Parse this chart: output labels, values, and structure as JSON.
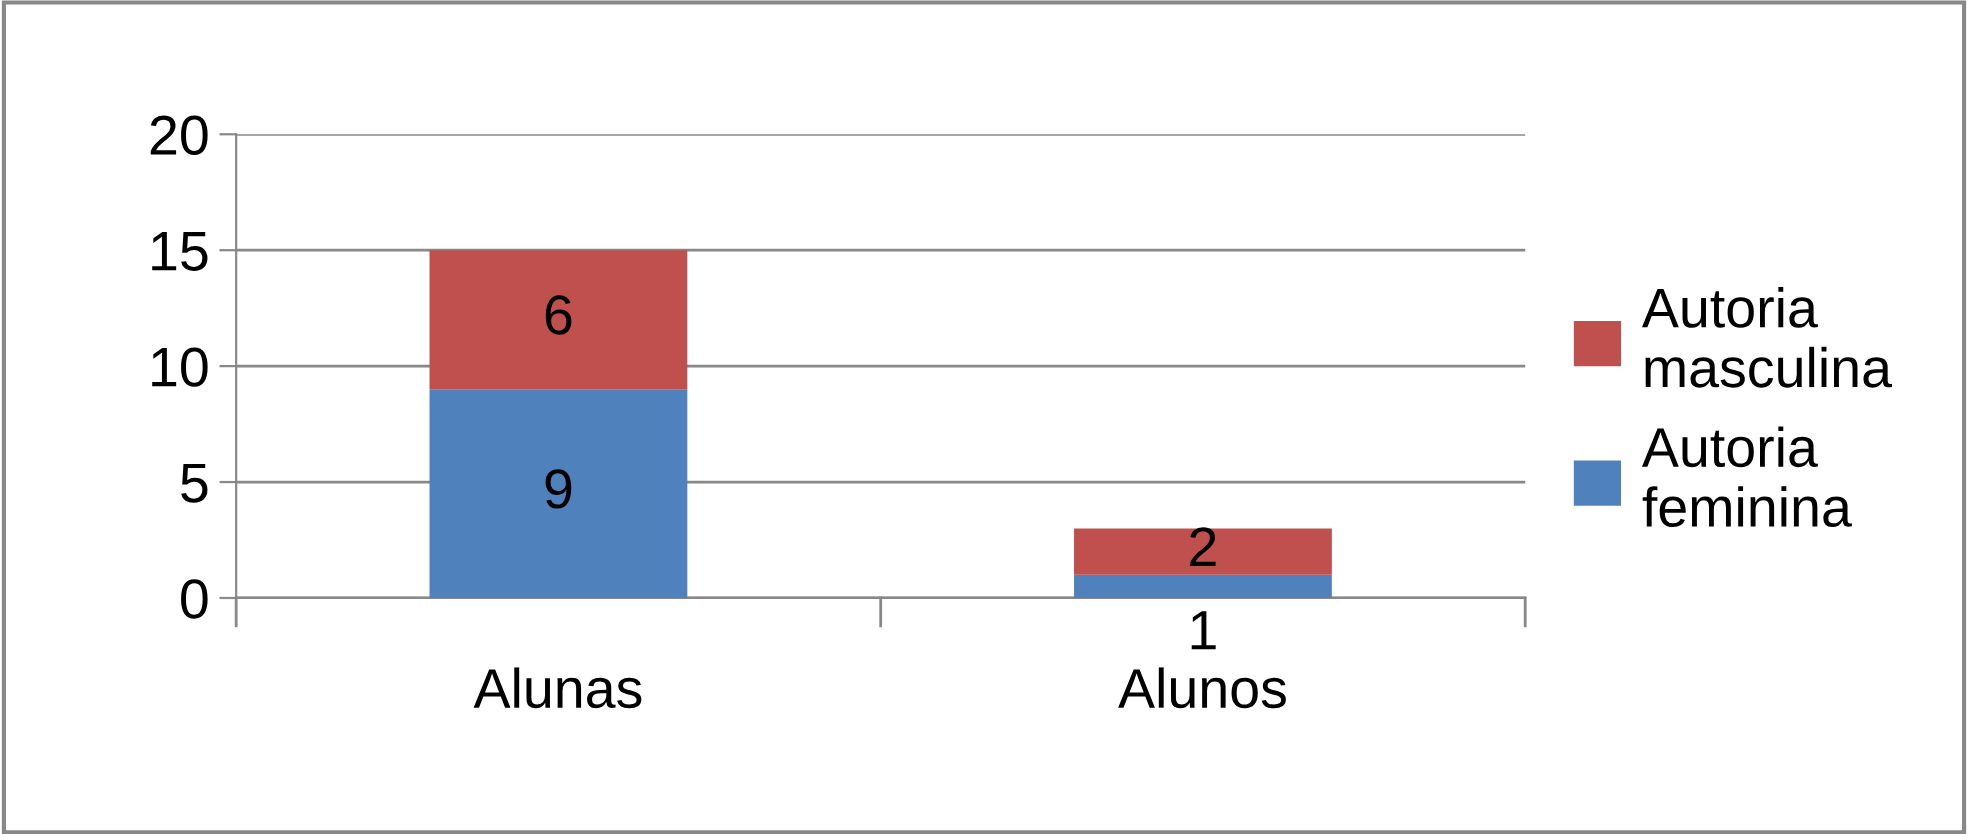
{
  "chart_data": {
    "type": "bar",
    "stacked": true,
    "categories": [
      "Alunas",
      "Alunos"
    ],
    "series": [
      {
        "name": "Autoria feminina",
        "color": "#4f81bd",
        "values": [
          9,
          1
        ]
      },
      {
        "name": "Autoria masculina",
        "color": "#c0504d",
        "values": [
          6,
          2
        ]
      }
    ],
    "ylim": [
      0,
      20
    ],
    "yticks": [
      0,
      5,
      10,
      15,
      20
    ],
    "grid": "y",
    "legend": "right",
    "data_labels": true
  }
}
